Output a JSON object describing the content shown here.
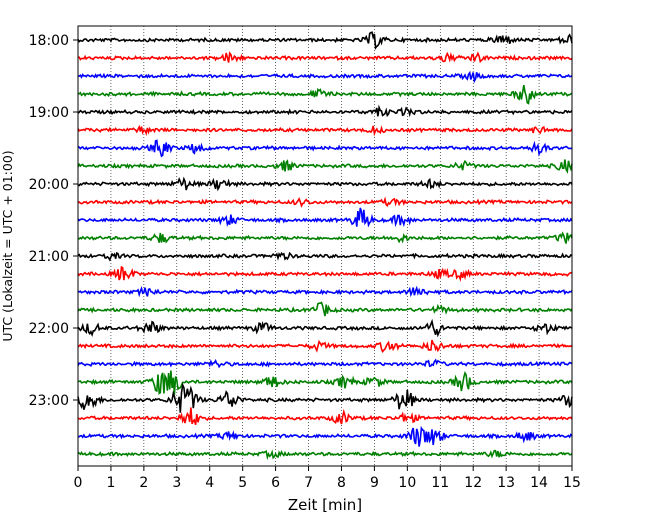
{
  "chart_data": {
    "type": "line",
    "chart_kind": "helicorder (seismogram drum plot)",
    "title": "",
    "xlabel": "Zeit  [min]",
    "ylabel": "UTC (Lokalzeit = UTC + 01:00)",
    "xlim": [
      0,
      15
    ],
    "x_ticks": [
      "0",
      "1",
      "2",
      "3",
      "4",
      "5",
      "6",
      "7",
      "8",
      "9",
      "10",
      "11",
      "12",
      "13",
      "14",
      "15"
    ],
    "y_tick_labels": [
      "18:00",
      "19:00",
      "20:00",
      "21:00",
      "22:00",
      "23:00"
    ],
    "grid": "vertical dotted lines at every minute",
    "trace_interval_min": 15,
    "color_cycle": [
      "#000000",
      "#ff0000",
      "#0000ff",
      "#008000"
    ],
    "rows": [
      {
        "start": "18:00",
        "color": "#000000",
        "events": [
          [
            9.0,
            0.8
          ],
          [
            12.9,
            0.6
          ],
          [
            14.9,
            0.5
          ]
        ]
      },
      {
        "start": "18:15",
        "color": "#ff0000",
        "events": [
          [
            4.6,
            0.5
          ],
          [
            11.2,
            0.4
          ],
          [
            12.1,
            0.4
          ]
        ]
      },
      {
        "start": "18:30",
        "color": "#0000ff",
        "events": [
          [
            12.0,
            0.4
          ]
        ]
      },
      {
        "start": "18:45",
        "color": "#008000",
        "events": [
          [
            7.3,
            0.4
          ],
          [
            13.6,
            1.0
          ]
        ]
      },
      {
        "start": "19:00",
        "color": "#000000",
        "events": [
          [
            9.2,
            0.4
          ],
          [
            10.0,
            0.3
          ]
        ]
      },
      {
        "start": "19:15",
        "color": "#ff0000",
        "events": [
          [
            2.0,
            0.3
          ],
          [
            9.0,
            0.3
          ],
          [
            14.0,
            0.3
          ]
        ]
      },
      {
        "start": "19:30",
        "color": "#0000ff",
        "events": [
          [
            2.5,
            0.9
          ],
          [
            3.6,
            0.5
          ],
          [
            14.0,
            0.5
          ]
        ]
      },
      {
        "start": "19:45",
        "color": "#008000",
        "events": [
          [
            6.3,
            0.5
          ],
          [
            11.7,
            0.4
          ],
          [
            14.8,
            0.6
          ]
        ]
      },
      {
        "start": "20:00",
        "color": "#000000",
        "events": [
          [
            3.2,
            0.6
          ],
          [
            4.3,
            0.6
          ],
          [
            10.7,
            0.4
          ]
        ]
      },
      {
        "start": "20:15",
        "color": "#ff0000",
        "events": [
          [
            6.8,
            0.3
          ],
          [
            9.5,
            0.3
          ]
        ]
      },
      {
        "start": "20:30",
        "color": "#0000ff",
        "events": [
          [
            4.6,
            0.5
          ],
          [
            8.6,
            1.2
          ],
          [
            9.8,
            0.5
          ]
        ]
      },
      {
        "start": "20:45",
        "color": "#008000",
        "events": [
          [
            2.5,
            0.5
          ],
          [
            9.8,
            0.3
          ],
          [
            14.8,
            0.5
          ]
        ]
      },
      {
        "start": "21:00",
        "color": "#000000",
        "events": [
          [
            1.0,
            0.3
          ],
          [
            6.2,
            0.3
          ]
        ]
      },
      {
        "start": "21:15",
        "color": "#ff0000",
        "events": [
          [
            1.4,
            0.8
          ],
          [
            11.0,
            0.4
          ],
          [
            11.6,
            0.4
          ]
        ]
      },
      {
        "start": "21:30",
        "color": "#0000ff",
        "events": [
          [
            2.1,
            0.4
          ],
          [
            10.3,
            0.5
          ]
        ]
      },
      {
        "start": "21:45",
        "color": "#008000",
        "events": [
          [
            7.4,
            0.7
          ],
          [
            11.0,
            0.3
          ]
        ]
      },
      {
        "start": "22:00",
        "color": "#000000",
        "events": [
          [
            0.4,
            0.6
          ],
          [
            2.2,
            0.7
          ],
          [
            5.6,
            0.5
          ],
          [
            10.8,
            0.8
          ],
          [
            14.2,
            0.5
          ]
        ]
      },
      {
        "start": "22:15",
        "color": "#ff0000",
        "events": [
          [
            7.3,
            0.4
          ],
          [
            9.4,
            0.6
          ],
          [
            10.8,
            0.6
          ]
        ]
      },
      {
        "start": "22:30",
        "color": "#0000ff",
        "events": [
          [
            4.2,
            0.3
          ],
          [
            10.8,
            0.3
          ]
        ]
      },
      {
        "start": "22:45",
        "color": "#008000",
        "events": [
          [
            2.5,
            1.2
          ],
          [
            2.9,
            1.2
          ],
          [
            5.9,
            0.6
          ],
          [
            8.1,
            0.6
          ],
          [
            9.0,
            0.5
          ],
          [
            11.7,
            1.0
          ]
        ]
      },
      {
        "start": "23:00",
        "color": "#000000",
        "events": [
          [
            0.3,
            1.2
          ],
          [
            3.1,
            1.2
          ],
          [
            3.4,
            1.0
          ],
          [
            4.6,
            1.0
          ],
          [
            9.9,
            1.3
          ],
          [
            14.9,
            0.6
          ]
        ]
      },
      {
        "start": "23:15",
        "color": "#ff0000",
        "events": [
          [
            3.4,
            1.1
          ],
          [
            8.0,
            0.6
          ],
          [
            10.0,
            0.5
          ]
        ]
      },
      {
        "start": "23:30",
        "color": "#0000ff",
        "events": [
          [
            4.6,
            0.4
          ],
          [
            10.3,
            1.1
          ],
          [
            10.8,
            0.9
          ],
          [
            13.6,
            0.5
          ]
        ]
      },
      {
        "start": "23:45",
        "color": "#008000",
        "events": [
          [
            5.9,
            0.3
          ],
          [
            12.7,
            0.3
          ]
        ]
      }
    ]
  }
}
